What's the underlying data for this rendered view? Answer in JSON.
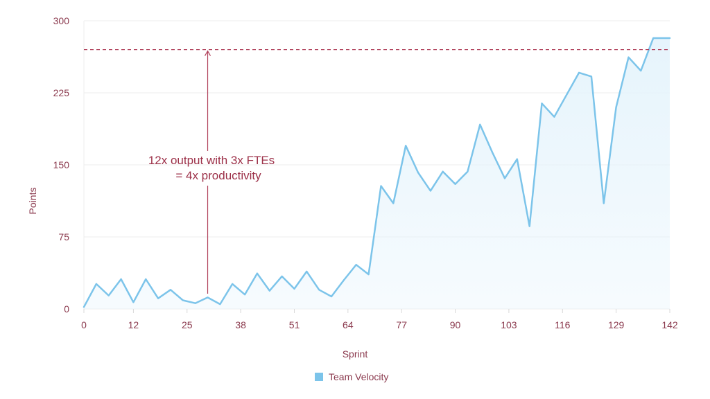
{
  "chart_data": {
    "type": "area",
    "xlabel": "Sprint",
    "ylabel": "Points",
    "xlim": [
      0,
      142
    ],
    "ylim": [
      0,
      300
    ],
    "x_ticks": [
      "0",
      "12",
      "25",
      "38",
      "51",
      "64",
      "77",
      "90",
      "103",
      "116",
      "129",
      "142"
    ],
    "y_ticks": [
      "0",
      "75",
      "150",
      "225",
      "300"
    ],
    "grid": "horizontal",
    "legend_position": "bottom-center",
    "colors": {
      "line": "#7cc4ea",
      "fill": "#e6f4fc",
      "annotation": "#b0405a",
      "grid": "#ececec",
      "text": "#8b3a4e"
    },
    "series": [
      {
        "name": "Team Velocity",
        "points": [
          [
            0,
            2
          ],
          [
            3,
            26
          ],
          [
            6,
            14
          ],
          [
            9,
            31
          ],
          [
            12,
            7
          ],
          [
            15,
            31
          ],
          [
            18,
            11
          ],
          [
            21,
            20
          ],
          [
            24,
            9
          ],
          [
            27,
            6
          ],
          [
            30,
            12
          ],
          [
            33,
            5
          ],
          [
            36,
            26
          ],
          [
            39,
            15
          ],
          [
            42,
            37
          ],
          [
            45,
            19
          ],
          [
            48,
            34
          ],
          [
            51,
            21
          ],
          [
            54,
            39
          ],
          [
            57,
            20
          ],
          [
            60,
            13
          ],
          [
            63,
            30
          ],
          [
            66,
            46
          ],
          [
            69,
            36
          ],
          [
            72,
            128
          ],
          [
            75,
            110
          ],
          [
            78,
            170
          ],
          [
            81,
            142
          ],
          [
            84,
            123
          ],
          [
            87,
            143
          ],
          [
            90,
            130
          ],
          [
            93,
            143
          ],
          [
            96,
            192
          ],
          [
            99,
            163
          ],
          [
            102,
            136
          ],
          [
            105,
            156
          ],
          [
            108,
            86
          ],
          [
            111,
            214
          ],
          [
            114,
            200
          ],
          [
            117,
            223
          ],
          [
            120,
            246
          ],
          [
            123,
            242
          ],
          [
            126,
            110
          ],
          [
            129,
            210
          ],
          [
            132,
            262
          ],
          [
            135,
            248
          ],
          [
            138,
            282
          ],
          [
            142,
            282
          ]
        ]
      }
    ],
    "reference_line": {
      "y": 270,
      "style": "dashed"
    },
    "annotations": [
      {
        "lines": [
          "12x output with 3x FTEs",
          "= 4x productivity"
        ],
        "arrow_x": 30
      }
    ]
  }
}
